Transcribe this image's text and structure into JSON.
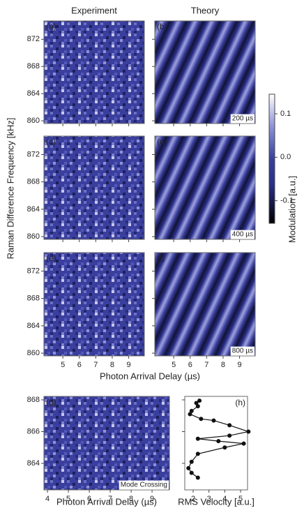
{
  "chart_data": [
    {
      "type": "heatmap",
      "column_titles": [
        "Experiment",
        "Theory"
      ],
      "panels": [
        {
          "label": "(a)"
        },
        {
          "label": "(b)",
          "annotation": "200 µs"
        },
        {
          "label": "(c)"
        },
        {
          "label": "(d)",
          "annotation": "400 µs"
        },
        {
          "label": "(e)"
        },
        {
          "label": "(f)",
          "annotation": "800 µs"
        }
      ],
      "xlabel": "Photon Arrival Delay (µs)",
      "ylabel": "Raman Difference Frequency [kHz]",
      "xlim": [
        3.85,
        9.95
      ],
      "xticks": [
        5,
        6,
        7,
        8,
        9
      ],
      "ylim": [
        859.6,
        874.7
      ],
      "yticks": [
        860,
        864,
        868,
        872
      ],
      "colorbar": {
        "label": "Modulation [a.u.]",
        "lim": [
          -0.152,
          0.145
        ],
        "ticks": [
          0.1,
          {
            "value": 0,
            "label": "0.0"
          },
          -0.1
        ]
      }
    },
    {
      "type": "heatmap",
      "panels": [
        {
          "label": "(g)",
          "annotation": "Mode Crossing"
        }
      ],
      "xlabel": "Photon Arrival Delay (µs)",
      "xlim": [
        3.83,
        9.83
      ],
      "xticks": [
        4,
        5,
        6,
        7,
        8,
        9
      ],
      "ylim": [
        862.33,
        868.22
      ],
      "yticks": [
        864,
        866,
        868
      ]
    },
    {
      "type": "line",
      "label": "(h)",
      "xlabel": "RMS Velocity [a.u.]",
      "color": "#111",
      "x": [
        2.4,
        2.2,
        2.3,
        1.9,
        1.8,
        2.5,
        3.3,
        4.3,
        5.5,
        4.3,
        2.3,
        3.6,
        5.2,
        4.0,
        2.3,
        1.9,
        1.7,
        1.9,
        2.3
      ],
      "y": [
        867.95,
        867.8,
        867.6,
        867.3,
        867.1,
        866.8,
        866.7,
        866.4,
        866.0,
        865.75,
        865.55,
        865.4,
        865.25,
        865.0,
        864.6,
        864.1,
        863.7,
        863.4,
        863.1
      ],
      "xlim": [
        1.47,
        5.44
      ],
      "xticks": [
        2,
        3,
        4,
        5
      ],
      "ylim": [
        862.33,
        868.22
      ],
      "yticks": [
        864,
        866,
        868
      ]
    }
  ]
}
